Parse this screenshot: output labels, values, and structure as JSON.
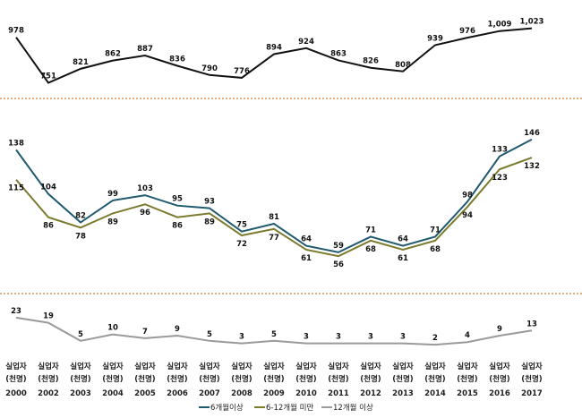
{
  "chart_data": {
    "type": "line",
    "categories": [
      "2000",
      "2002",
      "2003",
      "2004",
      "2005",
      "2006",
      "2007",
      "2008",
      "2009",
      "2010",
      "2011",
      "2012",
      "2013",
      "2014",
      "2015",
      "2016",
      "2017"
    ],
    "category_label_lines": [
      "실업자",
      "(천명)"
    ],
    "panels": [
      {
        "series": [
          {
            "color": "#111111",
            "values": [
              978,
              751,
              821,
              862,
              887,
              836,
              790,
              776,
              894,
              924,
              863,
              826,
              808,
              939,
              976,
              1009,
              1023
            ]
          }
        ],
        "ylim": [
          740,
          1030
        ]
      },
      {
        "series": [
          {
            "name": "6개월이상",
            "color": "#1f5a6e",
            "values": [
              138,
              104,
              82,
              99,
              103,
              95,
              93,
              75,
              81,
              64,
              59,
              71,
              64,
              71,
              98,
              133,
              146
            ]
          },
          {
            "name": "6-12개월 미만",
            "color": "#7b7b2e",
            "values": [
              115,
              86,
              78,
              89,
              96,
              86,
              89,
              72,
              77,
              61,
              56,
              68,
              61,
              68,
              94,
              123,
              132
            ]
          }
        ],
        "ylim": [
          52,
          150
        ]
      },
      {
        "series": [
          {
            "name": "12개월 이상",
            "color": "#9a9a9a",
            "values": [
              23,
              19,
              5,
              10,
              7,
              9,
              5,
              3,
              5,
              3,
              3,
              3,
              3,
              2,
              4,
              9,
              13
            ]
          }
        ],
        "ylim": [
          0,
          25
        ]
      }
    ],
    "grid": false,
    "separator_color": "#e0b080",
    "legend": {
      "placement": "bottom",
      "entries": [
        "6개월이상",
        "6-12개월 미만",
        "12개월 이상"
      ]
    }
  }
}
